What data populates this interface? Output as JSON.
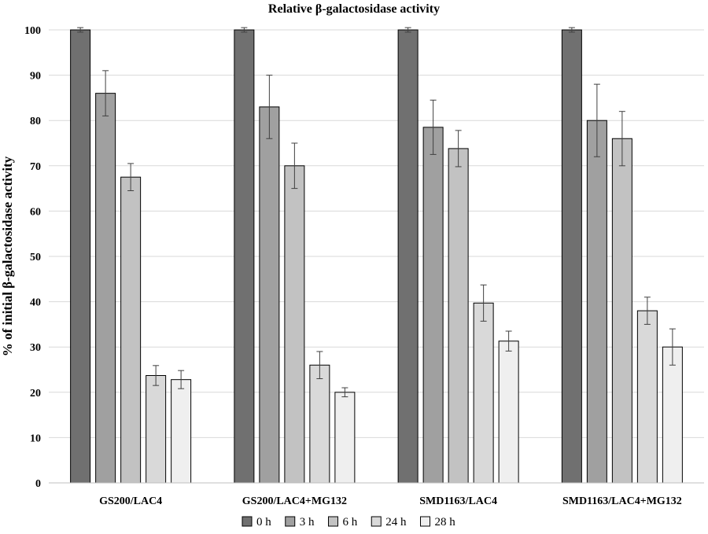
{
  "chart_data": {
    "type": "bar",
    "title": "Relative β-galactosidase activity",
    "xlabel": "",
    "ylabel": "% of initial β-galactosidase activity",
    "ylim": [
      0,
      100
    ],
    "yticks": [
      0,
      10,
      20,
      30,
      40,
      50,
      60,
      70,
      80,
      90,
      100
    ],
    "grid": true,
    "legend": "bottom",
    "categories": [
      "GS200/LAC4",
      "GS200/LAC4+MG132",
      "SMD1163/LAC4",
      "SMD1163/LAC4+MG132"
    ],
    "series": [
      {
        "name": "0 h",
        "color": "#707070",
        "values": [
          100,
          100,
          100,
          100
        ],
        "errors": [
          0.5,
          0.5,
          0.5,
          0.5
        ]
      },
      {
        "name": "3 h",
        "color": "#a0a0a0",
        "values": [
          86,
          83,
          78.5,
          80
        ],
        "errors": [
          5,
          7,
          6,
          8
        ]
      },
      {
        "name": "6 h",
        "color": "#c2c2c2",
        "values": [
          67.5,
          70,
          73.8,
          76
        ],
        "errors": [
          3,
          5,
          4,
          6
        ]
      },
      {
        "name": "24 h",
        "color": "#d9d9d9",
        "values": [
          23.7,
          26,
          39.7,
          38
        ],
        "errors": [
          2.2,
          3,
          4,
          3
        ]
      },
      {
        "name": "28 h",
        "color": "#efefef",
        "values": [
          22.8,
          20,
          31.3,
          30
        ],
        "errors": [
          2,
          1,
          2.2,
          4
        ]
      }
    ]
  }
}
